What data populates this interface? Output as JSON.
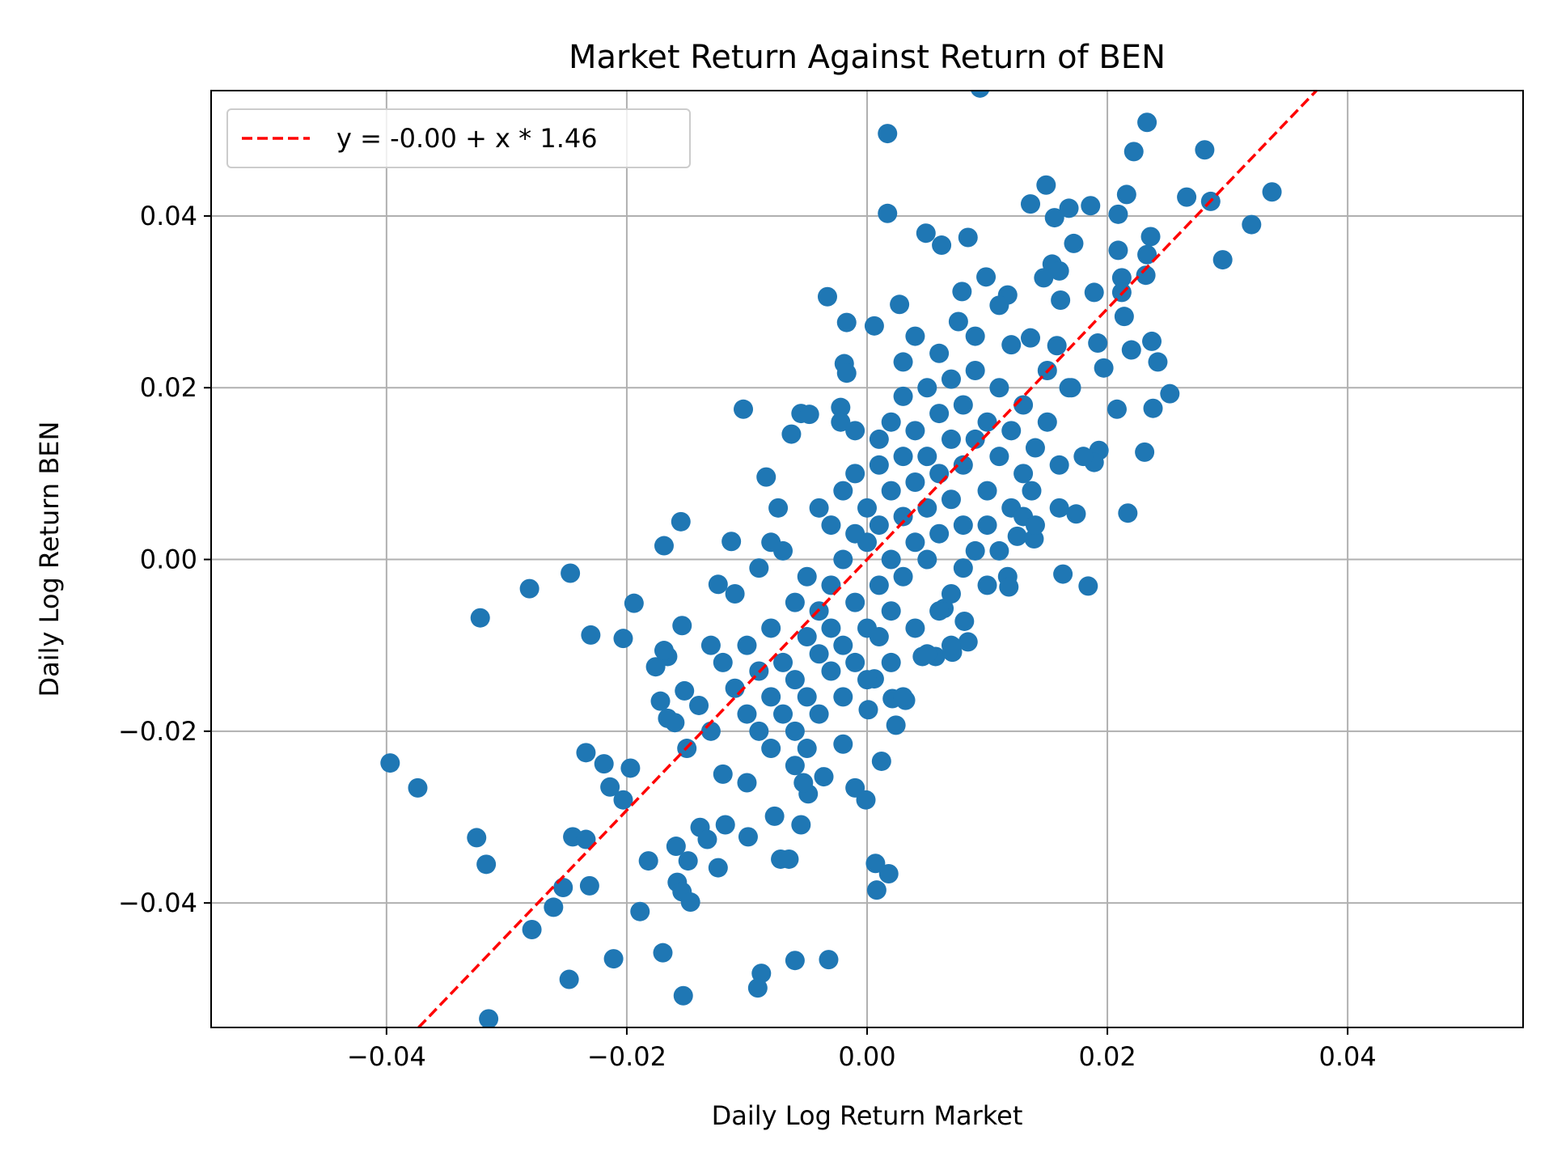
{
  "chart_data": {
    "type": "scatter",
    "title": "Market Return Against Return of BEN",
    "xlabel": "Daily Log Return Market",
    "ylabel": "Daily Log Return BEN",
    "xlim": [
      -0.0546,
      0.0546
    ],
    "ylim": [
      -0.0545,
      0.0546
    ],
    "xticks": [
      -0.04,
      -0.02,
      0.0,
      0.02,
      0.04
    ],
    "xtick_labels": [
      "−0.04",
      "−0.02",
      "0.00",
      "0.02",
      "0.04"
    ],
    "yticks": [
      -0.04,
      -0.02,
      0.0,
      0.02,
      0.04
    ],
    "ytick_labels": [
      "−0.04",
      "−0.02",
      "0.00",
      "0.02",
      "0.04"
    ],
    "grid": true,
    "legend_position": "top-left",
    "point_color": "#1f77b4",
    "fit_line": {
      "label": "y = -0.00 + x * 1.46",
      "intercept": 0.0,
      "slope": 1.46,
      "color": "#ff0000",
      "style": "dashed"
    },
    "points": [
      [
        0.0094,
        0.0549
      ],
      [
        0.0017,
        0.0496
      ],
      [
        0.0233,
        0.0509
      ],
      [
        0.0222,
        0.0475
      ],
      [
        0.0281,
        0.0477
      ],
      [
        0.0149,
        0.0436
      ],
      [
        0.0337,
        0.0428
      ],
      [
        0.0266,
        0.0422
      ],
      [
        0.0286,
        0.0417
      ],
      [
        0.0216,
        0.0425
      ],
      [
        0.0136,
        0.0414
      ],
      [
        0.0168,
        0.0409
      ],
      [
        0.0186,
        0.0412
      ],
      [
        0.0209,
        0.0402
      ],
      [
        0.0156,
        0.0398
      ],
      [
        0.0017,
        0.0403
      ],
      [
        0.032,
        0.039
      ],
      [
        0.0049,
        0.038
      ],
      [
        0.0084,
        0.0375
      ],
      [
        0.0062,
        0.0366
      ],
      [
        0.0236,
        0.0376
      ],
      [
        0.0172,
        0.0368
      ],
      [
        0.0296,
        0.0349
      ],
      [
        0.0209,
        0.036
      ],
      [
        0.0233,
        0.0355
      ],
      [
        0.0154,
        0.0344
      ],
      [
        0.016,
        0.0336
      ],
      [
        0.0147,
        0.0328
      ],
      [
        0.0212,
        0.0328
      ],
      [
        0.0232,
        0.0331
      ],
      [
        0.0099,
        0.0329
      ],
      [
        0.0079,
        0.0312
      ],
      [
        0.0117,
        0.0308
      ],
      [
        0.0189,
        0.0311
      ],
      [
        0.0212,
        0.0311
      ],
      [
        0.0161,
        0.0302
      ],
      [
        -0.0033,
        0.0306
      ],
      [
        0.0027,
        0.0297
      ],
      [
        0.011,
        0.0296
      ],
      [
        -0.0017,
        0.0276
      ],
      [
        0.0006,
        0.0272
      ],
      [
        0.0214,
        0.0283
      ],
      [
        0.0076,
        0.0277
      ],
      [
        0.0237,
        0.0254
      ],
      [
        0.0136,
        0.0258
      ],
      [
        0.0158,
        0.0249
      ],
      [
        0.0192,
        0.0252
      ],
      [
        0.022,
        0.0244
      ],
      [
        0.0242,
        0.023
      ],
      [
        0.0197,
        0.0223
      ],
      [
        -0.0019,
        0.0228
      ],
      [
        -0.0017,
        0.0217
      ],
      [
        0.0168,
        0.02
      ],
      [
        0.0252,
        0.0193
      ],
      [
        -0.0103,
        0.0175
      ],
      [
        -0.0055,
        0.017
      ],
      [
        -0.0048,
        0.0169
      ],
      [
        -0.0022,
        0.0177
      ],
      [
        0.0208,
        0.0175
      ],
      [
        0.0238,
        0.0176
      ],
      [
        -0.0022,
        0.016
      ],
      [
        -0.0063,
        0.0146
      ],
      [
        0.0231,
        0.0125
      ],
      [
        0.0193,
        0.0127
      ],
      [
        0.0189,
        0.0113
      ],
      [
        -0.0084,
        0.0096
      ],
      [
        0.0137,
        0.008
      ],
      [
        -0.0074,
        0.006
      ],
      [
        0.0174,
        0.0053
      ],
      [
        0.0217,
        0.0054
      ],
      [
        -0.0155,
        0.0044
      ],
      [
        -0.0169,
        0.0016
      ],
      [
        -0.0113,
        0.0021
      ],
      [
        0.0125,
        0.0027
      ],
      [
        0.0139,
        0.0024
      ],
      [
        -0.0247,
        -0.0016
      ],
      [
        -0.0281,
        -0.0034
      ],
      [
        -0.0322,
        -0.0068
      ],
      [
        -0.0194,
        -0.0051
      ],
      [
        -0.023,
        -0.0088
      ],
      [
        -0.0203,
        -0.0092
      ],
      [
        -0.0154,
        -0.0077
      ],
      [
        -0.0124,
        -0.0029
      ],
      [
        0.0163,
        -0.0017
      ],
      [
        0.0184,
        -0.0031
      ],
      [
        0.0117,
        -0.002
      ],
      [
        0.0118,
        -0.0032
      ],
      [
        0.0064,
        -0.0057
      ],
      [
        0.0081,
        -0.0072
      ],
      [
        0.0084,
        -0.0096
      ],
      [
        0.0046,
        -0.0113
      ],
      [
        0.0057,
        -0.0113
      ],
      [
        0.0071,
        -0.0108
      ],
      [
        -0.0176,
        -0.0125
      ],
      [
        -0.0166,
        -0.0113
      ],
      [
        -0.0169,
        -0.0106
      ],
      [
        0.0006,
        -0.0139
      ],
      [
        -0.0172,
        -0.0165
      ],
      [
        -0.0152,
        -0.0153
      ],
      [
        -0.0166,
        -0.0185
      ],
      [
        0.0001,
        -0.0175
      ],
      [
        0.0021,
        -0.0162
      ],
      [
        0.0032,
        -0.0164
      ],
      [
        0.0024,
        -0.0193
      ],
      [
        -0.002,
        -0.0215
      ],
      [
        -0.0397,
        -0.0237
      ],
      [
        -0.0374,
        -0.0266
      ],
      [
        -0.0234,
        -0.0225
      ],
      [
        -0.0219,
        -0.0238
      ],
      [
        -0.0197,
        -0.0243
      ],
      [
        -0.0214,
        -0.0265
      ],
      [
        -0.0203,
        -0.028
      ],
      [
        0.0012,
        -0.0235
      ],
      [
        -0.001,
        -0.0266
      ],
      [
        -0.0001,
        -0.028
      ],
      [
        -0.0036,
        -0.0253
      ],
      [
        -0.0049,
        -0.0273
      ],
      [
        -0.0053,
        -0.026
      ],
      [
        -0.0055,
        -0.0309
      ],
      [
        -0.0077,
        -0.0299
      ],
      [
        -0.0099,
        -0.0323
      ],
      [
        -0.0118,
        -0.0309
      ],
      [
        -0.0139,
        -0.0312
      ],
      [
        -0.0133,
        -0.0326
      ],
      [
        -0.0325,
        -0.0324
      ],
      [
        -0.0317,
        -0.0355
      ],
      [
        -0.0245,
        -0.0323
      ],
      [
        -0.0234,
        -0.0326
      ],
      [
        -0.0182,
        -0.0351
      ],
      [
        -0.0159,
        -0.0334
      ],
      [
        -0.0149,
        -0.0351
      ],
      [
        -0.0124,
        -0.0359
      ],
      [
        -0.0072,
        -0.0349
      ],
      [
        -0.0065,
        -0.0349
      ],
      [
        0.0007,
        -0.0354
      ],
      [
        0.0018,
        -0.0366
      ],
      [
        0.0008,
        -0.0385
      ],
      [
        -0.0253,
        -0.0382
      ],
      [
        -0.0231,
        -0.038
      ],
      [
        -0.0158,
        -0.0376
      ],
      [
        -0.0154,
        -0.0387
      ],
      [
        -0.0147,
        -0.0399
      ],
      [
        -0.0261,
        -0.0405
      ],
      [
        -0.0189,
        -0.041
      ],
      [
        -0.0279,
        -0.0431
      ],
      [
        -0.0211,
        -0.0465
      ],
      [
        -0.017,
        -0.0458
      ],
      [
        -0.006,
        -0.0467
      ],
      [
        -0.0032,
        -0.0466
      ],
      [
        -0.0088,
        -0.0482
      ],
      [
        -0.0091,
        -0.0499
      ],
      [
        -0.0248,
        -0.0489
      ],
      [
        -0.0153,
        -0.0508
      ],
      [
        -0.0315,
        -0.0535
      ],
      [
        -0.012,
        -0.012
      ],
      [
        -0.011,
        -0.015
      ],
      [
        -0.01,
        -0.018
      ],
      [
        -0.01,
        -0.01
      ],
      [
        -0.009,
        -0.02
      ],
      [
        -0.009,
        -0.013
      ],
      [
        -0.008,
        -0.016
      ],
      [
        -0.008,
        -0.008
      ],
      [
        -0.008,
        -0.022
      ],
      [
        -0.007,
        -0.012
      ],
      [
        -0.007,
        -0.018
      ],
      [
        -0.006,
        -0.005
      ],
      [
        -0.006,
        -0.014
      ],
      [
        -0.006,
        -0.02
      ],
      [
        -0.005,
        -0.009
      ],
      [
        -0.005,
        -0.016
      ],
      [
        -0.005,
        -0.002
      ],
      [
        -0.004,
        -0.011
      ],
      [
        -0.004,
        -0.018
      ],
      [
        -0.004,
        -0.006
      ],
      [
        -0.003,
        -0.003
      ],
      [
        -0.003,
        -0.013
      ],
      [
        -0.003,
        -0.008
      ],
      [
        -0.003,
        0.004
      ],
      [
        -0.002,
        -0.016
      ],
      [
        -0.002,
        -0.01
      ],
      [
        -0.002,
        0.0
      ],
      [
        -0.002,
        0.008
      ],
      [
        -0.001,
        -0.005
      ],
      [
        -0.001,
        -0.012
      ],
      [
        -0.001,
        0.003
      ],
      [
        -0.001,
        0.01
      ],
      [
        0.0,
        -0.008
      ],
      [
        0.0,
        0.002
      ],
      [
        0.0,
        0.006
      ],
      [
        0.0,
        -0.014
      ],
      [
        0.001,
        0.004
      ],
      [
        0.001,
        -0.003
      ],
      [
        0.001,
        0.011
      ],
      [
        0.001,
        0.014
      ],
      [
        0.002,
        0.0
      ],
      [
        0.002,
        0.008
      ],
      [
        0.002,
        -0.006
      ],
      [
        0.002,
        0.016
      ],
      [
        0.003,
        0.005
      ],
      [
        0.003,
        0.012
      ],
      [
        0.003,
        -0.002
      ],
      [
        0.003,
        0.019
      ],
      [
        0.004,
        0.002
      ],
      [
        0.004,
        0.009
      ],
      [
        0.004,
        0.015
      ],
      [
        0.004,
        -0.008
      ],
      [
        0.005,
        0.006
      ],
      [
        0.005,
        0.012
      ],
      [
        0.005,
        0.02
      ],
      [
        0.005,
        0.0
      ],
      [
        0.006,
        0.003
      ],
      [
        0.006,
        0.01
      ],
      [
        0.006,
        0.017
      ],
      [
        0.006,
        0.024
      ],
      [
        0.007,
        0.007
      ],
      [
        0.007,
        0.014
      ],
      [
        0.007,
        -0.004
      ],
      [
        0.007,
        0.021
      ],
      [
        0.008,
        0.004
      ],
      [
        0.008,
        0.011
      ],
      [
        0.008,
        0.018
      ],
      [
        0.009,
        0.001
      ],
      [
        0.009,
        0.014
      ],
      [
        0.009,
        0.022
      ],
      [
        0.01,
        0.008
      ],
      [
        0.01,
        0.016
      ],
      [
        0.01,
        -0.003
      ],
      [
        0.011,
        0.012
      ],
      [
        0.011,
        0.02
      ],
      [
        0.012,
        0.006
      ],
      [
        0.012,
        0.015
      ],
      [
        0.013,
        0.01
      ],
      [
        0.013,
        0.018
      ],
      [
        0.014,
        0.013
      ],
      [
        0.015,
        0.016
      ],
      [
        0.016,
        0.011
      ],
      [
        0.017,
        0.02
      ],
      [
        0.015,
        0.022
      ],
      [
        0.012,
        0.025
      ],
      [
        0.009,
        0.026
      ],
      [
        -0.013,
        -0.02
      ],
      [
        -0.014,
        -0.017
      ],
      [
        -0.015,
        -0.022
      ],
      [
        -0.012,
        -0.025
      ],
      [
        -0.011,
        -0.004
      ],
      [
        -0.009,
        -0.001
      ],
      [
        -0.007,
        0.001
      ],
      [
        -0.01,
        -0.026
      ],
      [
        -0.006,
        -0.024
      ],
      [
        -0.005,
        -0.022
      ],
      [
        0.004,
        0.026
      ],
      [
        0.003,
        0.023
      ],
      [
        -0.001,
        0.015
      ],
      [
        0.006,
        -0.006
      ],
      [
        0.008,
        -0.001
      ],
      [
        0.01,
        0.004
      ],
      [
        0.011,
        0.001
      ],
      [
        0.013,
        0.005
      ],
      [
        0.016,
        0.006
      ],
      [
        0.018,
        0.012
      ],
      [
        0.014,
        0.004
      ],
      [
        -0.016,
        -0.019
      ],
      [
        -0.013,
        -0.01
      ],
      [
        -0.008,
        0.002
      ],
      [
        -0.004,
        0.006
      ],
      [
        0.002,
        -0.012
      ],
      [
        0.001,
        -0.009
      ],
      [
        0.005,
        -0.011
      ],
      [
        0.007,
        -0.01
      ],
      [
        0.003,
        -0.016
      ]
    ]
  }
}
